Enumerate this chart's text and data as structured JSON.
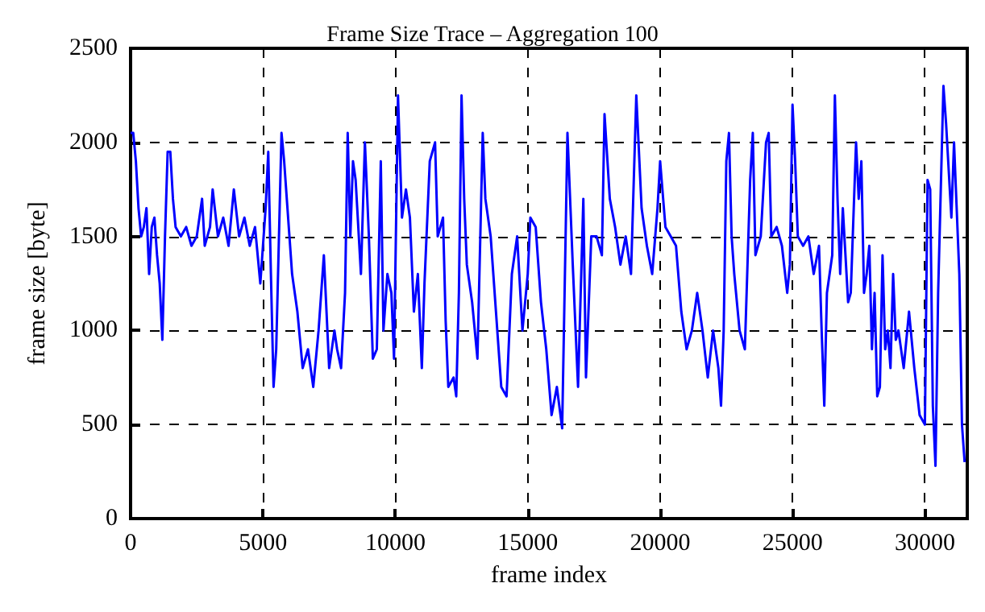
{
  "chart_data": {
    "type": "line",
    "title": "Frame Size Trace – Aggregation 100",
    "xlabel": "frame index",
    "ylabel": "frame size [byte]",
    "xlim": [
      0,
      31600
    ],
    "xticks": [
      0,
      5000,
      10000,
      15000,
      20000,
      25000,
      30000
    ],
    "ylim": [
      0,
      2500
    ],
    "yticks": [
      0,
      500,
      1000,
      1500,
      2000,
      2500
    ],
    "grid": true,
    "line_style": "solid",
    "marker": "none",
    "series": [
      {
        "color": "#0000ff",
        "x": [
          0,
          100,
          200,
          300,
          400,
          500,
          600,
          700,
          800,
          900,
          1000,
          1100,
          1200,
          1300,
          1400,
          1500,
          1600,
          1700,
          1900,
          2100,
          2300,
          2500,
          2700,
          2800,
          3000,
          3100,
          3300,
          3500,
          3700,
          3900,
          4100,
          4300,
          4500,
          4700,
          4900,
          5000,
          5100,
          5200,
          5300,
          5400,
          5500,
          5700,
          5800,
          6000,
          6100,
          6300,
          6500,
          6700,
          6900,
          7100,
          7300,
          7500,
          7700,
          7800,
          7950,
          8100,
          8200,
          8300,
          8400,
          8500,
          8700,
          8850,
          9000,
          9150,
          9300,
          9450,
          9550,
          9700,
          9850,
          9950,
          10100,
          10250,
          10400,
          10550,
          10700,
          10850,
          11000,
          11100,
          11300,
          11500,
          11600,
          11800,
          11900,
          12000,
          12200,
          12300,
          12400,
          12500,
          12600,
          12700,
          12900,
          13100,
          13300,
          13400,
          13600,
          13800,
          14000,
          14200,
          14400,
          14600,
          14800,
          15000,
          15100,
          15300,
          15500,
          15700,
          15900,
          16100,
          16300,
          16500,
          16700,
          16900,
          17100,
          17200,
          17400,
          17600,
          17800,
          17900,
          18100,
          18300,
          18500,
          18700,
          18900,
          19100,
          19300,
          19500,
          19700,
          19900,
          20000,
          20200,
          20400,
          20600,
          20800,
          21000,
          21200,
          21400,
          21600,
          21800,
          22000,
          22200,
          22300,
          22400,
          22500,
          22600,
          22700,
          22800,
          23000,
          23200,
          23400,
          23500,
          23600,
          23800,
          24000,
          24100,
          24200,
          24400,
          24600,
          24800,
          24900,
          25000,
          25100,
          25200,
          25400,
          25600,
          25800,
          26000,
          26100,
          26200,
          26300,
          26500,
          26600,
          26700,
          26800,
          26900,
          27100,
          27200,
          27400,
          27500,
          27600,
          27700,
          27800,
          27900,
          28000,
          28100,
          28200,
          28300,
          28400,
          28500,
          28600,
          28700,
          28800,
          28900,
          29000,
          29200,
          29400,
          29600,
          29800,
          30000,
          30100,
          30200,
          30300,
          30400,
          30500,
          30700,
          30800,
          31000,
          31100,
          31300,
          31400,
          31500
        ],
        "values": [
          2050,
          2050,
          1900,
          1650,
          1500,
          1550,
          1650,
          1300,
          1550,
          1600,
          1400,
          1250,
          950,
          1500,
          1950,
          1950,
          1700,
          1550,
          1500,
          1550,
          1450,
          1500,
          1700,
          1450,
          1550,
          1750,
          1500,
          1600,
          1450,
          1750,
          1500,
          1600,
          1450,
          1550,
          1250,
          1450,
          1650,
          1950,
          1300,
          700,
          900,
          2050,
          1900,
          1500,
          1300,
          1100,
          800,
          900,
          700,
          1000,
          1400,
          800,
          1000,
          900,
          800,
          1200,
          2050,
          1500,
          1900,
          1800,
          1300,
          2000,
          1500,
          850,
          900,
          1900,
          1000,
          1300,
          1200,
          850,
          2250,
          1600,
          1750,
          1600,
          1100,
          1300,
          800,
          1250,
          1900,
          2000,
          1500,
          1600,
          1050,
          700,
          750,
          650,
          1200,
          2250,
          1700,
          1350,
          1150,
          850,
          2050,
          1700,
          1500,
          1100,
          700,
          650,
          1300,
          1500,
          1000,
          1300,
          1600,
          1550,
          1150,
          900,
          550,
          700,
          480,
          2050,
          1350,
          700,
          1700,
          750,
          1500,
          1500,
          1400,
          2150,
          1700,
          1550,
          1350,
          1500,
          1300,
          2250,
          1650,
          1450,
          1300,
          1650,
          1900,
          1550,
          1500,
          1450,
          1100,
          900,
          1000,
          1200,
          1000,
          750,
          1000,
          800,
          600,
          1000,
          1900,
          2050,
          1500,
          1300,
          1000,
          900,
          1800,
          2050,
          1400,
          1500,
          2000,
          2050,
          1500,
          1550,
          1450,
          1200,
          1350,
          2200,
          1900,
          1500,
          1450,
          1500,
          1300,
          1450,
          1000,
          600,
          1200,
          1400,
          2250,
          1700,
          1300,
          1650,
          1150,
          1200,
          2000,
          1700,
          1900,
          1200,
          1300,
          1450,
          900,
          1200,
          650,
          700,
          1400,
          900,
          1000,
          800,
          1300,
          950,
          1000,
          800,
          1100,
          800,
          550,
          500,
          1800,
          1750,
          600,
          280,
          1200,
          2300,
          2100,
          1600,
          2000,
          1300,
          500,
          300
        ]
      }
    ]
  }
}
